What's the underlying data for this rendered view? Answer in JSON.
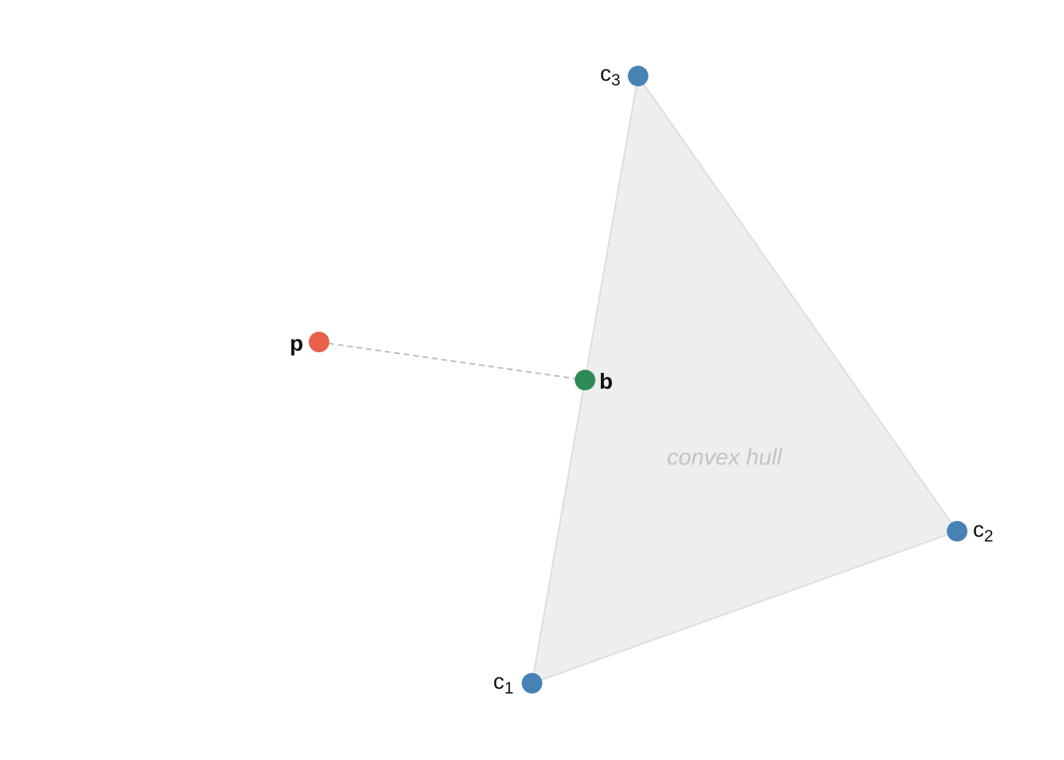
{
  "diagram": {
    "hull": {
      "caption": "convex hull",
      "fill": "#eeeeee",
      "stroke": "#dddddd",
      "caption_color": "#c4c4c4"
    },
    "vertices": [
      {
        "id": "c1",
        "base": "c",
        "sub": "1",
        "color": "#4682b4"
      },
      {
        "id": "c2",
        "base": "c",
        "sub": "2",
        "color": "#4682b4"
      },
      {
        "id": "c3",
        "base": "c",
        "sub": "3",
        "color": "#4682b4"
      }
    ],
    "query_point": {
      "label": "p",
      "color": "#e8604a"
    },
    "projection_point": {
      "label": "b",
      "color": "#2e8b57"
    },
    "connector": {
      "color": "#b8b8b8",
      "style": "dashed"
    }
  }
}
